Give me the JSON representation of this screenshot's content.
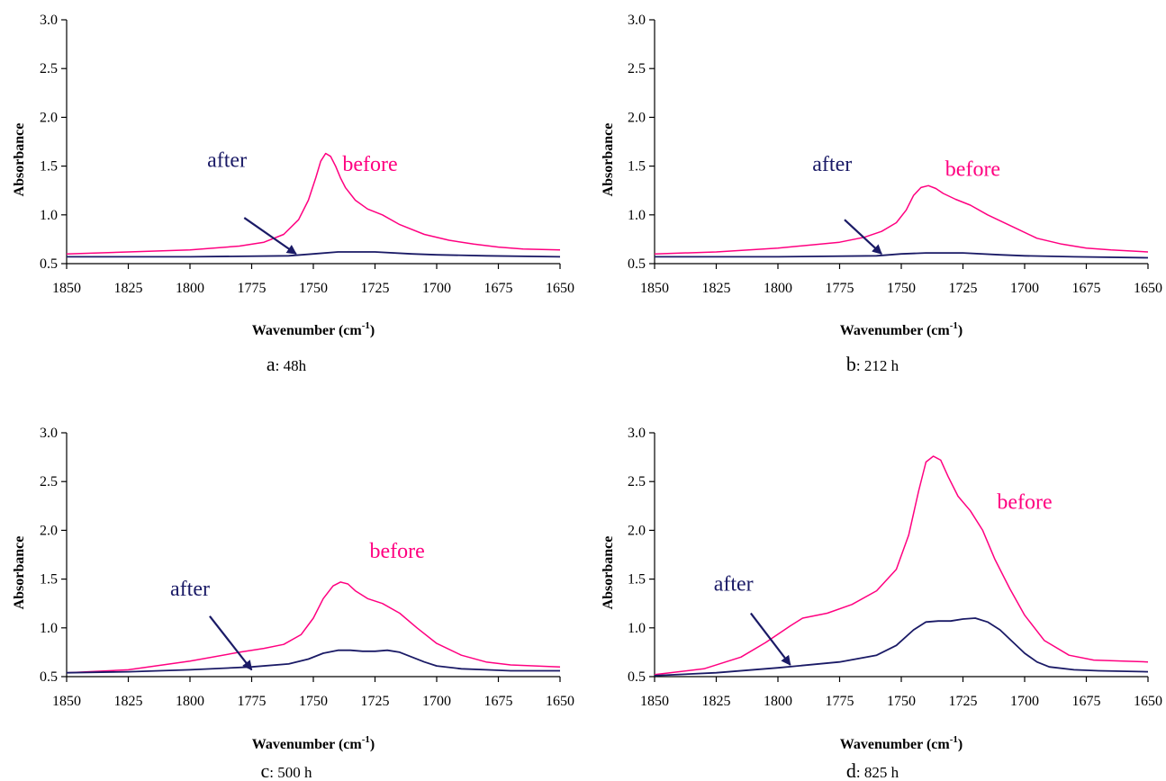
{
  "colors": {
    "before": "#ff0080",
    "after": "#1a1a66",
    "axis": "#000000"
  },
  "chart_data": [
    {
      "type": "line",
      "caption": {
        "letter": "a",
        "rest": ": 48h"
      },
      "xlabel": "Wavenumber (cm",
      "xlabel_sup": "-1",
      "xlabel_end": ")",
      "ylabel": "Absorbance",
      "xlim": [
        1850,
        1650
      ],
      "ylim": [
        0.5,
        3.0
      ],
      "xticks": [
        "1850",
        "1825",
        "1800",
        "1775",
        "1750",
        "1725",
        "1700",
        "1675",
        "1650"
      ],
      "yticks": [
        "0.5",
        "1.0",
        "1.5",
        "2.0",
        "2.5",
        "3.0"
      ],
      "legend": "none",
      "grid": false,
      "annotations": [
        {
          "text": "before",
          "series": "before",
          "x": 1727,
          "y": 1.45
        },
        {
          "text": "after",
          "series": "after",
          "x": 1785,
          "y": 1.49,
          "arrow_to": [
            1757,
            0.6
          ],
          "arrow_from": [
            1778,
            0.97
          ]
        }
      ],
      "series": [
        {
          "key": "before",
          "x": [
            1850,
            1825,
            1800,
            1780,
            1770,
            1762,
            1756,
            1752,
            1749,
            1747,
            1745,
            1743,
            1741,
            1739,
            1737,
            1733,
            1728,
            1722,
            1715,
            1705,
            1695,
            1685,
            1675,
            1665,
            1650
          ],
          "y": [
            0.6,
            0.62,
            0.64,
            0.68,
            0.72,
            0.8,
            0.95,
            1.15,
            1.38,
            1.55,
            1.63,
            1.6,
            1.5,
            1.38,
            1.28,
            1.15,
            1.06,
            1.0,
            0.9,
            0.8,
            0.74,
            0.7,
            0.67,
            0.65,
            0.64
          ]
        },
        {
          "key": "after",
          "x": [
            1850,
            1800,
            1760,
            1750,
            1740,
            1725,
            1710,
            1700,
            1680,
            1650
          ],
          "y": [
            0.57,
            0.57,
            0.58,
            0.6,
            0.62,
            0.62,
            0.6,
            0.59,
            0.58,
            0.57
          ]
        }
      ]
    },
    {
      "type": "line",
      "caption": {
        "letter": "b",
        "rest": ": 212 h"
      },
      "xlabel": "Wavenumber (cm",
      "xlabel_sup": "-1",
      "xlabel_end": ")",
      "ylabel": "Absorbance",
      "xlim": [
        1850,
        1650
      ],
      "ylim": [
        0.5,
        3.0
      ],
      "xticks": [
        "1850",
        "1825",
        "1800",
        "1775",
        "1750",
        "1725",
        "1700",
        "1675",
        "1650"
      ],
      "yticks": [
        "0.5",
        "1.0",
        "1.5",
        "2.0",
        "2.5",
        "3.0"
      ],
      "legend": "none",
      "grid": false,
      "annotations": [
        {
          "text": "before",
          "series": "before",
          "x": 1721,
          "y": 1.4
        },
        {
          "text": "after",
          "series": "after",
          "x": 1778,
          "y": 1.45,
          "arrow_to": [
            1758,
            0.6
          ],
          "arrow_from": [
            1773,
            0.95
          ]
        }
      ],
      "series": [
        {
          "key": "before",
          "x": [
            1850,
            1825,
            1800,
            1775,
            1765,
            1758,
            1752,
            1748,
            1745,
            1742,
            1739,
            1736,
            1733,
            1728,
            1722,
            1715,
            1705,
            1695,
            1685,
            1675,
            1665,
            1650
          ],
          "y": [
            0.6,
            0.62,
            0.66,
            0.72,
            0.77,
            0.83,
            0.92,
            1.05,
            1.2,
            1.28,
            1.3,
            1.27,
            1.22,
            1.16,
            1.1,
            1.0,
            0.88,
            0.76,
            0.7,
            0.66,
            0.64,
            0.62
          ]
        },
        {
          "key": "after",
          "x": [
            1850,
            1800,
            1760,
            1750,
            1740,
            1725,
            1710,
            1700,
            1680,
            1650
          ],
          "y": [
            0.57,
            0.57,
            0.58,
            0.6,
            0.61,
            0.61,
            0.59,
            0.58,
            0.57,
            0.56
          ]
        }
      ]
    },
    {
      "type": "line",
      "caption": {
        "letter": "c",
        "rest": ": 500 h"
      },
      "xlabel": "Wavenumber (cm",
      "xlabel_sup": "-1",
      "xlabel_end": ")",
      "ylabel": "Absorbance",
      "xlim": [
        1850,
        1650
      ],
      "ylim": [
        0.5,
        3.0
      ],
      "xticks": [
        "1850",
        "1825",
        "1800",
        "1775",
        "1750",
        "1725",
        "1700",
        "1675",
        "1650"
      ],
      "yticks": [
        "0.5",
        "1.0",
        "1.5",
        "2.0",
        "2.5",
        "3.0"
      ],
      "legend": "none",
      "grid": false,
      "annotations": [
        {
          "text": "before",
          "series": "before",
          "x": 1716,
          "y": 1.72
        },
        {
          "text": "after",
          "series": "after",
          "x": 1800,
          "y": 1.33,
          "arrow_to": [
            1775,
            0.57
          ],
          "arrow_from": [
            1792,
            1.12
          ]
        }
      ],
      "series": [
        {
          "key": "before",
          "x": [
            1850,
            1825,
            1800,
            1780,
            1770,
            1762,
            1755,
            1750,
            1746,
            1742,
            1739,
            1736,
            1733,
            1728,
            1722,
            1715,
            1708,
            1700,
            1690,
            1680,
            1670,
            1650
          ],
          "y": [
            0.54,
            0.57,
            0.66,
            0.75,
            0.79,
            0.83,
            0.93,
            1.1,
            1.3,
            1.43,
            1.47,
            1.45,
            1.38,
            1.3,
            1.25,
            1.15,
            1.0,
            0.84,
            0.72,
            0.65,
            0.62,
            0.6
          ]
        },
        {
          "key": "after",
          "x": [
            1850,
            1825,
            1800,
            1775,
            1760,
            1752,
            1746,
            1740,
            1735,
            1730,
            1725,
            1720,
            1715,
            1710,
            1705,
            1700,
            1690,
            1680,
            1670,
            1650
          ],
          "y": [
            0.54,
            0.55,
            0.57,
            0.6,
            0.63,
            0.68,
            0.74,
            0.77,
            0.77,
            0.76,
            0.76,
            0.77,
            0.75,
            0.7,
            0.65,
            0.61,
            0.58,
            0.57,
            0.56,
            0.56
          ]
        }
      ]
    },
    {
      "type": "line",
      "caption": {
        "letter": "d",
        "rest": ": 825 h"
      },
      "xlabel": "Wavenumber (cm",
      "xlabel_sup": "-1",
      "xlabel_end": ")",
      "ylabel": "Absorbance",
      "xlim": [
        1850,
        1650
      ],
      "ylim": [
        0.5,
        3.0
      ],
      "xticks": [
        "1850",
        "1825",
        "1800",
        "1775",
        "1750",
        "1725",
        "1700",
        "1675",
        "1650"
      ],
      "yticks": [
        "0.5",
        "1.0",
        "1.5",
        "2.0",
        "2.5",
        "3.0"
      ],
      "legend": "none",
      "grid": false,
      "annotations": [
        {
          "text": "before",
          "series": "before",
          "x": 1700,
          "y": 2.22
        },
        {
          "text": "after",
          "series": "after",
          "x": 1818,
          "y": 1.38,
          "arrow_to": [
            1795,
            0.62
          ],
          "arrow_from": [
            1811,
            1.15
          ]
        }
      ],
      "series": [
        {
          "key": "before",
          "x": [
            1850,
            1830,
            1815,
            1805,
            1795,
            1790,
            1780,
            1770,
            1760,
            1752,
            1747,
            1743,
            1740,
            1737,
            1734,
            1731,
            1727,
            1722,
            1717,
            1712,
            1706,
            1700,
            1692,
            1682,
            1672,
            1660,
            1650
          ],
          "y": [
            0.52,
            0.58,
            0.7,
            0.85,
            1.02,
            1.1,
            1.15,
            1.24,
            1.38,
            1.6,
            1.95,
            2.4,
            2.7,
            2.76,
            2.72,
            2.55,
            2.35,
            2.2,
            2.0,
            1.7,
            1.4,
            1.13,
            0.87,
            0.72,
            0.67,
            0.66,
            0.65
          ]
        },
        {
          "key": "after",
          "x": [
            1850,
            1825,
            1800,
            1775,
            1760,
            1752,
            1745,
            1740,
            1735,
            1730,
            1725,
            1720,
            1715,
            1710,
            1705,
            1700,
            1695,
            1690,
            1680,
            1670,
            1650
          ],
          "y": [
            0.51,
            0.54,
            0.59,
            0.65,
            0.72,
            0.82,
            0.98,
            1.06,
            1.07,
            1.07,
            1.09,
            1.1,
            1.06,
            0.98,
            0.86,
            0.74,
            0.65,
            0.6,
            0.57,
            0.56,
            0.55
          ]
        }
      ]
    }
  ]
}
